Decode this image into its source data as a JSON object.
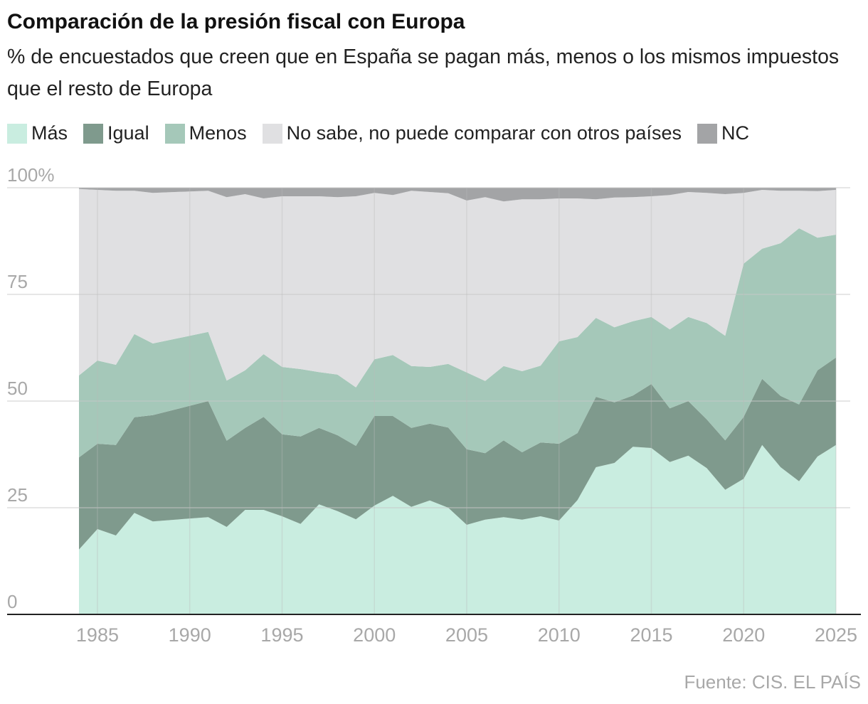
{
  "chart_data": {
    "type": "stacked-area",
    "title": "Comparación de la presión fiscal con Europa",
    "subtitle": "% de encuestados que creen que en España se pagan más, menos o los mismos impuestos que el resto de Europa",
    "source": "Fuente: CIS. EL PAÍS",
    "x": [
      1984,
      1985,
      1986,
      1987,
      1988,
      1991,
      1992,
      1993,
      1994,
      1995,
      1996,
      1997,
      1998,
      1999,
      2000,
      2001,
      2002,
      2003,
      2004,
      2005,
      2006,
      2007,
      2008,
      2009,
      2010,
      2011,
      2012,
      2013,
      2014,
      2015,
      2016,
      2017,
      2018,
      2019,
      2020,
      2021,
      2022,
      2023,
      2024,
      2025
    ],
    "series": [
      {
        "name": "Más",
        "color": "#c9ede0",
        "values": [
          15.2,
          20,
          18.5,
          23.8,
          21.8,
          22.8,
          20.5,
          24.5,
          24.5,
          23,
          21.2,
          25.8,
          24.2,
          22.3,
          25.5,
          27.8,
          25.2,
          26.7,
          25,
          21,
          22.2,
          22.8,
          22.2,
          23,
          22,
          26.8,
          34.5,
          35.5,
          39.3,
          39,
          35.7,
          37.2,
          34.3,
          29.2,
          31.8,
          39.7,
          34.5,
          31.2,
          37,
          39.7
        ]
      },
      {
        "name": "Igual",
        "color": "#7f9a8d",
        "values": [
          21.6,
          20,
          21.2,
          22.4,
          24.9,
          27.2,
          20.2,
          19.2,
          21.8,
          19.2,
          20.5,
          17.9,
          17.8,
          17.2,
          21,
          18.7,
          18.5,
          18,
          18.8,
          17.7,
          15.6,
          18,
          15.8,
          17.3,
          18,
          15.7,
          16.5,
          14.2,
          12,
          15,
          12.6,
          12.8,
          11.4,
          11.6,
          14.5,
          15.5,
          16.7,
          18,
          20.2,
          20.5
        ]
      },
      {
        "name": "Menos",
        "color": "#a5c8b9",
        "values": [
          19.2,
          19.5,
          18.8,
          19.5,
          16.8,
          16.2,
          14.1,
          13.5,
          14.7,
          15.8,
          15.8,
          13.1,
          14.2,
          13.7,
          13.3,
          14.3,
          14.5,
          13.3,
          14.9,
          18,
          16.9,
          17.4,
          19,
          18,
          24,
          22.5,
          18.5,
          17.6,
          17.4,
          15.7,
          18.5,
          19.7,
          22.6,
          24.5,
          35.9,
          30.5,
          35.8,
          41.3,
          31.1,
          28.8
        ]
      },
      {
        "name": "No sabe, no puede comparar con otros países",
        "color": "#e0e0e2",
        "values": [
          43.7,
          40,
          40.8,
          33.6,
          35.3,
          33.1,
          43,
          41.3,
          36.5,
          40,
          40.5,
          41.2,
          41.6,
          44.8,
          39,
          37.5,
          41.1,
          41,
          40,
          40.3,
          43.1,
          38.6,
          40.3,
          39,
          33.5,
          32.5,
          27.8,
          30.4,
          29.1,
          28.3,
          31.5,
          29.3,
          30.5,
          33.2,
          16.6,
          13.8,
          12.3,
          8.8,
          10.9,
          10.5
        ]
      },
      {
        "name": "NC",
        "color": "#a3a4a6",
        "values": [
          0.3,
          0.5,
          0.7,
          0.7,
          1.2,
          0.7,
          2.2,
          1.5,
          2.5,
          2,
          2,
          2,
          2.2,
          2,
          1.2,
          1.7,
          0.7,
          1,
          1.3,
          3,
          2.2,
          3.2,
          2.7,
          2.7,
          2.5,
          2.5,
          2.7,
          2.3,
          2.2,
          2,
          1.7,
          1,
          1.2,
          1.5,
          1.2,
          0.5,
          0.7,
          0.7,
          0.8,
          0.5
        ]
      }
    ],
    "xlim": [
      1984,
      2025
    ],
    "xticks": [
      1985,
      1990,
      1995,
      2000,
      2005,
      2010,
      2015,
      2020,
      2025
    ],
    "ylim": [
      0,
      100
    ],
    "yticks": [
      0,
      25,
      50,
      75,
      {
        "value": 100,
        "label": "100%"
      }
    ],
    "grid": true
  }
}
